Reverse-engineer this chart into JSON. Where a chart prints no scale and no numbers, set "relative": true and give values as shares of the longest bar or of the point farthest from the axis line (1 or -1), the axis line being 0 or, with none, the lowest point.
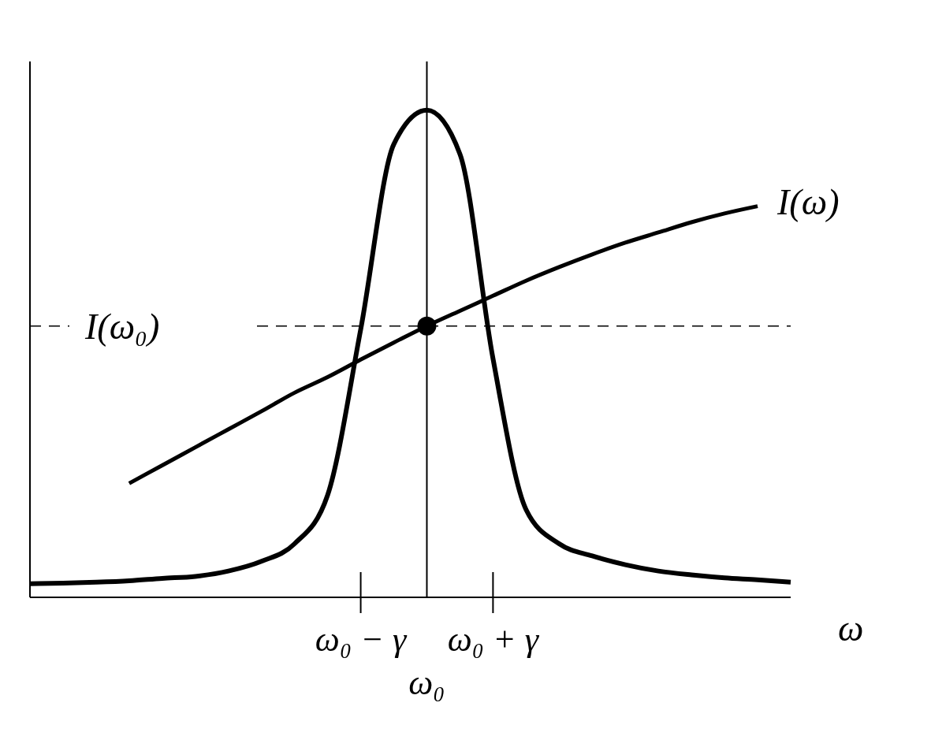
{
  "chart_data": {
    "type": "line",
    "relative": true,
    "xlabel": "ω",
    "marker": "none",
    "legend": false,
    "grid": false,
    "categories": [
      null,
      null,
      null,
      null,
      null,
      null,
      null,
      null,
      null,
      null,
      "ω₀ − γ",
      null,
      "ω₀",
      null,
      "ω₀ + γ",
      null,
      null,
      null,
      null,
      null,
      null,
      null,
      null,
      null
    ],
    "series": [
      {
        "color": "#000000",
        "values": [
          0.028,
          0.029,
          0.031,
          0.034,
          0.039,
          0.043,
          0.054,
          0.074,
          0.11,
          0.21,
          0.55,
          0.93,
          1,
          0.91,
          0.49,
          0.18,
          0.11,
          0.085,
          0.067,
          0.054,
          0.046,
          0.04,
          0.036,
          0.031
        ]
      },
      {
        "name": "I(ω)",
        "color": "#000000",
        "values": [
          null,
          null,
          null,
          0.234,
          0.271,
          0.308,
          0.345,
          0.382,
          0.42,
          0.452,
          0.488,
          0.523,
          0.557,
          0.588,
          0.619,
          0.65,
          0.678,
          0.704,
          0.728,
          0.749,
          0.77,
          0.788,
          0.803,
          null
        ]
      },
      {
        "type": "scatter",
        "color": "#000000",
        "marker": "circle",
        "x": [
          "ω₀"
        ],
        "values": [
          0.557
        ]
      }
    ],
    "ref_lines": [
      {
        "axis": "y",
        "value": 0.557,
        "label": "I(ω₀)",
        "line_style": "dashed"
      },
      {
        "axis": "x",
        "value": "ω₀",
        "line_style": "solid"
      }
    ]
  }
}
